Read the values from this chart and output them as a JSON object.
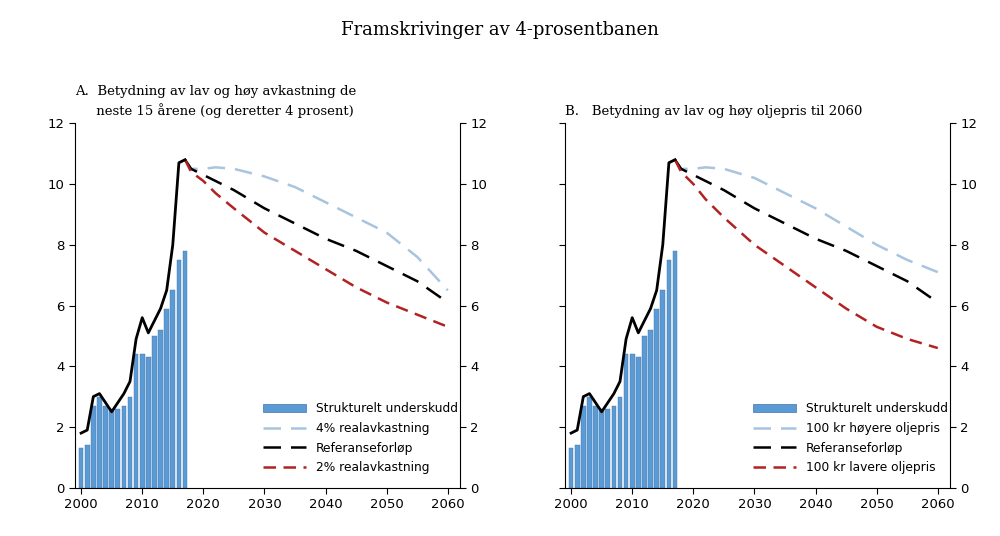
{
  "title": "Framskrivinger av 4-prosentbanen",
  "subtitle_A": "A.  Betydning av lav og høy avkastning de\n     neste 15 årene (og deretter 4 prosent)",
  "subtitle_B": "B.   Betydning av lav og høy oljepris til 2060",
  "bar_years": [
    2000,
    2001,
    2002,
    2003,
    2004,
    2005,
    2006,
    2007,
    2008,
    2009,
    2010,
    2011,
    2012,
    2013,
    2014,
    2015,
    2016,
    2017
  ],
  "bar_values": [
    1.3,
    1.4,
    2.7,
    3.0,
    2.7,
    2.6,
    2.6,
    2.7,
    3.0,
    4.4,
    4.4,
    4.3,
    5.0,
    5.2,
    5.9,
    6.5,
    7.5,
    7.8
  ],
  "bar_color": "#5b9bd5",
  "solid_line_years": [
    2000,
    2001,
    2002,
    2003,
    2004,
    2005,
    2006,
    2007,
    2008,
    2009,
    2010,
    2011,
    2012,
    2013,
    2014,
    2015,
    2016,
    2017
  ],
  "solid_line_values": [
    1.8,
    1.9,
    3.0,
    3.1,
    2.8,
    2.5,
    2.8,
    3.1,
    3.5,
    4.9,
    5.6,
    5.1,
    5.5,
    5.9,
    6.5,
    8.0,
    10.7,
    10.8
  ],
  "proj_years": [
    2017,
    2018,
    2020,
    2022,
    2025,
    2030,
    2035,
    2040,
    2045,
    2050,
    2055,
    2060
  ],
  "ref_A": [
    10.8,
    10.5,
    10.3,
    10.1,
    9.8,
    9.2,
    8.7,
    8.2,
    7.8,
    7.3,
    6.8,
    6.1
  ],
  "high_A": [
    10.8,
    10.5,
    10.5,
    10.55,
    10.5,
    10.25,
    9.9,
    9.4,
    8.9,
    8.4,
    7.6,
    6.5
  ],
  "low_A": [
    10.8,
    10.4,
    10.1,
    9.7,
    9.2,
    8.4,
    7.8,
    7.2,
    6.6,
    6.1,
    5.7,
    5.3
  ],
  "ref_B": [
    10.8,
    10.5,
    10.3,
    10.1,
    9.8,
    9.2,
    8.7,
    8.2,
    7.8,
    7.3,
    6.8,
    6.1
  ],
  "high_B": [
    10.8,
    10.5,
    10.5,
    10.55,
    10.5,
    10.2,
    9.7,
    9.2,
    8.6,
    8.0,
    7.5,
    7.1
  ],
  "low_B": [
    10.8,
    10.4,
    10.0,
    9.5,
    8.9,
    8.0,
    7.3,
    6.6,
    5.9,
    5.3,
    4.9,
    4.6
  ],
  "ylim": [
    0,
    12
  ],
  "yticks": [
    0,
    2,
    4,
    6,
    8,
    10,
    12
  ],
  "xticks": [
    2000,
    2010,
    2020,
    2030,
    2040,
    2050,
    2060
  ],
  "legend_A": [
    "Strukturelt underskudd",
    "4% realavkastning",
    "Referanseforløp",
    "2% realavkastning"
  ],
  "legend_B": [
    "Strukturelt underskudd",
    "100 kr høyere oljepris",
    "Referanseforløp",
    "100 kr lavere oljepris"
  ],
  "bg_color": "#ffffff",
  "axes_bg": "#ffffff",
  "bar_edgecolor": "#4472a8",
  "light_blue": "#a8c4de",
  "dark_red": "#b22222"
}
